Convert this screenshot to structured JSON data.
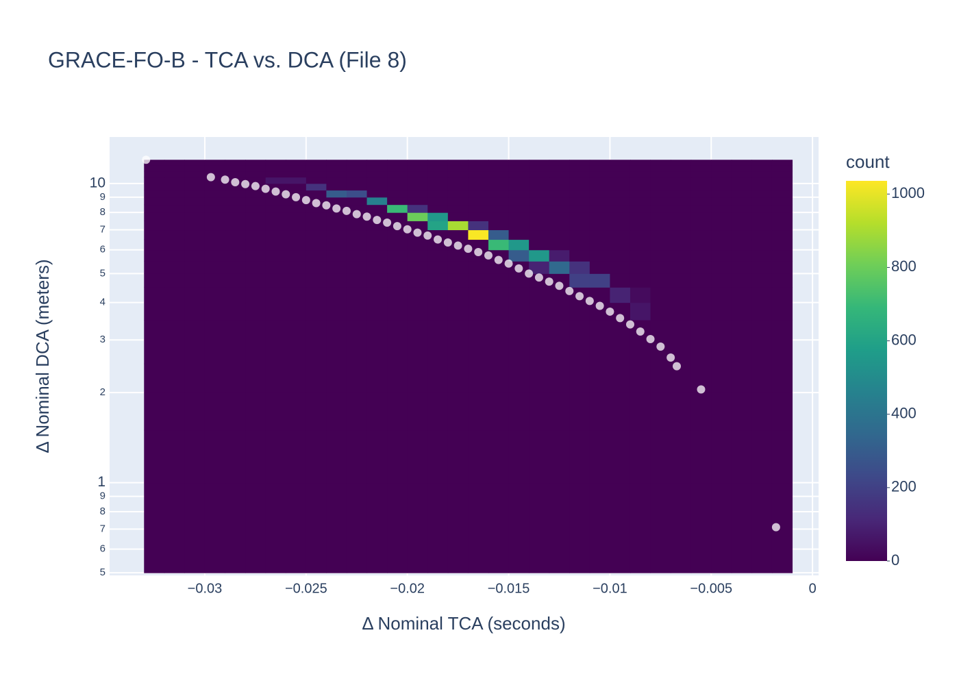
{
  "chart_data": {
    "type": "histogram2d",
    "title": "GRACE-FO-B - TCA vs. DCA (File 8)",
    "x_label": "Δ Nominal TCA (seconds)",
    "y_label": "Δ Nominal DCA (meters)",
    "colorbar_title": "count",
    "xlim": [
      -0.0347,
      0.0003
    ],
    "ylim": [
      0.49,
      14.3
    ],
    "y_scale": "log",
    "grid": true,
    "xticks": [
      {
        "value": -0.03,
        "label": "−0.03"
      },
      {
        "value": -0.025,
        "label": "−0.025"
      },
      {
        "value": -0.02,
        "label": "−0.02"
      },
      {
        "value": -0.015,
        "label": "−0.015"
      },
      {
        "value": -0.01,
        "label": "−0.01"
      },
      {
        "value": -0.005,
        "label": "−0.005"
      },
      0
    ],
    "yticks": [
      {
        "value": 0.5,
        "label": "5"
      },
      {
        "value": 0.6,
        "label": "6"
      },
      {
        "value": 0.7,
        "label": "7"
      },
      {
        "value": 0.8,
        "label": "8"
      },
      {
        "value": 0.9,
        "label": "9"
      },
      1,
      2,
      3,
      4,
      5,
      6,
      7,
      8,
      9,
      10
    ],
    "zlim": [
      0,
      1036
    ],
    "zticks": [
      0,
      200,
      400,
      600,
      800,
      1000
    ],
    "colorscale": [
      [
        0,
        "#440154"
      ],
      [
        0.111,
        "#482878"
      ],
      [
        0.222,
        "#3e4989"
      ],
      [
        0.333,
        "#31688e"
      ],
      [
        0.444,
        "#26828e"
      ],
      [
        0.556,
        "#1f9e89"
      ],
      [
        0.667,
        "#35b779"
      ],
      [
        0.778,
        "#6ece58"
      ],
      [
        0.889,
        "#b5de2b"
      ],
      [
        1,
        "#fde725"
      ]
    ],
    "xbins": {
      "start": -0.033,
      "end": -0.001,
      "size": 0.001
    },
    "ybins": {
      "start": 0.5,
      "end": 12,
      "size": 0.5
    },
    "z": [
      [
        0,
        0,
        0,
        0,
        0,
        0,
        0,
        0,
        0,
        0,
        0,
        0,
        0,
        0,
        0,
        0,
        0,
        0,
        0,
        0,
        0,
        0,
        0,
        0,
        0,
        0,
        0,
        0,
        0,
        0,
        0,
        0
      ],
      [
        0,
        0,
        0,
        0,
        0,
        0,
        0,
        0,
        0,
        0,
        0,
        0,
        0,
        0,
        0,
        0,
        0,
        0,
        0,
        0,
        0,
        0,
        0,
        0,
        0,
        0,
        0,
        0,
        0,
        0,
        0,
        0
      ],
      [
        0,
        0,
        0,
        0,
        0,
        0,
        0,
        0,
        0,
        0,
        0,
        0,
        0,
        0,
        0,
        0,
        0,
        0,
        0,
        0,
        0,
        0,
        0,
        0,
        0,
        0,
        0,
        0,
        0,
        0,
        0,
        0
      ],
      [
        0,
        0,
        0,
        0,
        0,
        0,
        0,
        0,
        0,
        0,
        0,
        0,
        0,
        0,
        0,
        0,
        0,
        0,
        0,
        0,
        0,
        0,
        0,
        0,
        0,
        0,
        0,
        0,
        0,
        0,
        0,
        0
      ],
      [
        0,
        0,
        0,
        0,
        0,
        0,
        0,
        0,
        0,
        0,
        0,
        0,
        0,
        0,
        0,
        0,
        0,
        0,
        0,
        0,
        0,
        0,
        0,
        0,
        0,
        0,
        0,
        0,
        0,
        0,
        0,
        0
      ],
      [
        0,
        0,
        0,
        0,
        0,
        0,
        0,
        0,
        0,
        0,
        0,
        0,
        0,
        0,
        0,
        0,
        0,
        0,
        0,
        0,
        0,
        0,
        0,
        0,
        0,
        0,
        0,
        0,
        0,
        0,
        0,
        0
      ],
      [
        0,
        0,
        0,
        0,
        0,
        0,
        0,
        0,
        0,
        0,
        0,
        0,
        0,
        0,
        0,
        0,
        0,
        0,
        0,
        0,
        0,
        0,
        0,
        0,
        60,
        0,
        0,
        0,
        0,
        0,
        0,
        0
      ],
      [
        0,
        0,
        0,
        0,
        0,
        0,
        0,
        0,
        0,
        0,
        0,
        0,
        0,
        0,
        0,
        0,
        0,
        0,
        0,
        0,
        0,
        0,
        0,
        100,
        30,
        0,
        0,
        0,
        0,
        0,
        0,
        0
      ],
      [
        0,
        0,
        0,
        0,
        0,
        0,
        0,
        0,
        0,
        0,
        0,
        0,
        0,
        0,
        0,
        0,
        0,
        0,
        0,
        0,
        0,
        200,
        200,
        0,
        0,
        0,
        0,
        0,
        0,
        0,
        0,
        0
      ],
      [
        0,
        0,
        0,
        0,
        0,
        0,
        0,
        0,
        0,
        0,
        0,
        0,
        0,
        0,
        0,
        0,
        0,
        0,
        0,
        100,
        350,
        150,
        0,
        0,
        0,
        0,
        0,
        0,
        0,
        0,
        0,
        0
      ],
      [
        0,
        0,
        0,
        0,
        0,
        0,
        0,
        0,
        0,
        0,
        0,
        0,
        0,
        0,
        0,
        0,
        0,
        0,
        300,
        550,
        80,
        0,
        0,
        0,
        0,
        0,
        0,
        0,
        0,
        0,
        0,
        0
      ],
      [
        0,
        0,
        0,
        0,
        0,
        0,
        0,
        0,
        0,
        0,
        0,
        0,
        0,
        0,
        0,
        0,
        0,
        700,
        550,
        0,
        0,
        0,
        0,
        0,
        0,
        0,
        0,
        0,
        0,
        0,
        0,
        0
      ],
      [
        0,
        0,
        0,
        0,
        0,
        0,
        0,
        0,
        0,
        0,
        0,
        0,
        0,
        0,
        0,
        0,
        1030,
        300,
        0,
        0,
        0,
        0,
        0,
        0,
        0,
        0,
        0,
        0,
        0,
        0,
        0,
        0
      ],
      [
        0,
        0,
        0,
        0,
        0,
        0,
        0,
        0,
        0,
        0,
        0,
        0,
        0,
        0,
        600,
        900,
        150,
        0,
        0,
        0,
        0,
        0,
        0,
        0,
        0,
        0,
        0,
        0,
        0,
        0,
        0,
        0
      ],
      [
        0,
        0,
        0,
        0,
        0,
        0,
        0,
        0,
        0,
        0,
        0,
        0,
        0,
        800,
        550,
        0,
        0,
        0,
        0,
        0,
        0,
        0,
        0,
        0,
        0,
        0,
        0,
        0,
        0,
        0,
        0,
        0
      ],
      [
        0,
        0,
        0,
        0,
        0,
        0,
        0,
        0,
        0,
        0,
        0,
        0,
        700,
        150,
        0,
        0,
        0,
        0,
        0,
        0,
        0,
        0,
        0,
        0,
        0,
        0,
        0,
        0,
        0,
        0,
        0,
        0
      ],
      [
        0,
        0,
        0,
        0,
        0,
        0,
        0,
        0,
        0,
        0,
        0,
        450,
        0,
        0,
        0,
        0,
        0,
        0,
        0,
        0,
        0,
        0,
        0,
        0,
        0,
        0,
        0,
        0,
        0,
        0,
        0,
        0
      ],
      [
        0,
        0,
        0,
        0,
        0,
        0,
        0,
        0,
        0,
        300,
        250,
        0,
        0,
        0,
        0,
        0,
        0,
        0,
        0,
        0,
        0,
        0,
        0,
        0,
        0,
        0,
        0,
        0,
        0,
        0,
        0,
        0
      ],
      [
        0,
        0,
        0,
        0,
        0,
        0,
        0,
        0,
        150,
        0,
        0,
        0,
        0,
        0,
        0,
        0,
        0,
        0,
        0,
        0,
        0,
        0,
        0,
        0,
        0,
        0,
        0,
        0,
        0,
        0,
        0,
        0
      ],
      [
        0,
        0,
        0,
        0,
        0,
        0,
        60,
        60,
        0,
        0,
        0,
        0,
        0,
        0,
        0,
        0,
        0,
        0,
        0,
        0,
        0,
        0,
        0,
        0,
        0,
        0,
        0,
        0,
        0,
        0,
        0,
        0
      ],
      [
        0,
        0,
        0,
        0,
        0,
        0,
        0,
        0,
        0,
        0,
        0,
        0,
        0,
        0,
        0,
        0,
        0,
        0,
        0,
        0,
        0,
        0,
        0,
        0,
        0,
        0,
        0,
        0,
        0,
        0,
        0,
        0
      ],
      [
        0,
        0,
        0,
        0,
        0,
        0,
        0,
        0,
        0,
        0,
        0,
        0,
        0,
        0,
        0,
        0,
        0,
        0,
        0,
        0,
        0,
        0,
        0,
        0,
        0,
        0,
        0,
        0,
        0,
        0,
        0,
        0
      ],
      [
        0,
        0,
        0,
        0,
        0,
        0,
        0,
        0,
        0,
        0,
        0,
        0,
        0,
        0,
        0,
        0,
        0,
        0,
        0,
        0,
        0,
        0,
        0,
        0,
        0,
        0,
        0,
        0,
        0,
        0,
        0,
        0
      ]
    ],
    "scatter": {
      "color": "#ffffff",
      "x": [
        -0.0297,
        -0.029,
        -0.0285,
        -0.028,
        -0.0275,
        -0.027,
        -0.0265,
        -0.026,
        -0.0255,
        -0.025,
        -0.0245,
        -0.024,
        -0.0235,
        -0.023,
        -0.0225,
        -0.022,
        -0.0215,
        -0.021,
        -0.0205,
        -0.02,
        -0.0195,
        -0.019,
        -0.0185,
        -0.018,
        -0.0175,
        -0.017,
        -0.0165,
        -0.016,
        -0.0155,
        -0.015,
        -0.0145,
        -0.014,
        -0.0135,
        -0.013,
        -0.0125,
        -0.012,
        -0.0115,
        -0.011,
        -0.0105,
        -0.01,
        -0.0095,
        -0.009,
        -0.0085,
        -0.008,
        -0.0075,
        -0.007,
        -0.0067,
        -0.0055,
        -0.0018,
        -0.0329
      ],
      "y": [
        10.5,
        10.3,
        10.1,
        9.95,
        9.8,
        9.6,
        9.4,
        9.2,
        9.0,
        8.8,
        8.6,
        8.45,
        8.25,
        8.1,
        7.9,
        7.75,
        7.55,
        7.4,
        7.2,
        7.03,
        6.85,
        6.7,
        6.5,
        6.35,
        6.2,
        6.05,
        5.9,
        5.75,
        5.55,
        5.4,
        5.2,
        5.0,
        4.85,
        4.7,
        4.55,
        4.37,
        4.2,
        4.05,
        3.9,
        3.73,
        3.55,
        3.38,
        3.2,
        3.02,
        2.85,
        2.62,
        2.45,
        2.05,
        0.71,
        12.0
      ]
    }
  }
}
